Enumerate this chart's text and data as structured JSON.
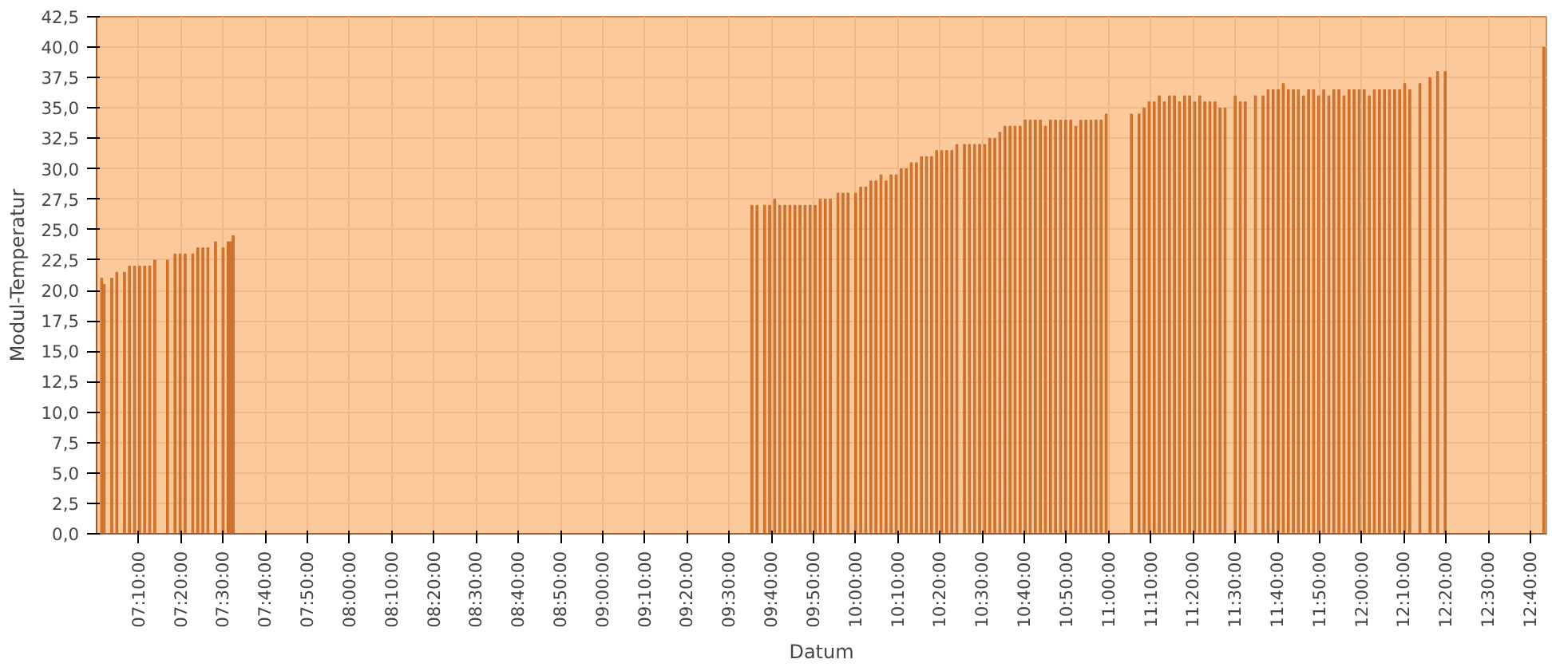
{
  "chart_data": {
    "type": "bar",
    "xlabel": "Datum",
    "ylabel": "Modul-Temperatur",
    "x": [
      7.02,
      7.03,
      7.06,
      7.08,
      7.11,
      7.13,
      7.15,
      7.17,
      7.19,
      7.21,
      7.23,
      7.28,
      7.31,
      7.33,
      7.35,
      7.38,
      7.4,
      7.42,
      7.44,
      7.47,
      7.5,
      7.52,
      7.53,
      7.54,
      9.59,
      9.61,
      9.64,
      9.66,
      9.68,
      9.7,
      9.72,
      9.74,
      9.76,
      9.78,
      9.8,
      9.82,
      9.84,
      9.86,
      9.88,
      9.9,
      9.93,
      9.95,
      9.97,
      10.0,
      10.02,
      10.04,
      10.06,
      10.08,
      10.1,
      10.12,
      10.14,
      10.16,
      10.18,
      10.2,
      10.22,
      10.24,
      10.26,
      10.28,
      10.3,
      10.32,
      10.34,
      10.36,
      10.38,
      10.4,
      10.43,
      10.45,
      10.47,
      10.49,
      10.51,
      10.53,
      10.55,
      10.57,
      10.59,
      10.61,
      10.63,
      10.65,
      10.67,
      10.69,
      10.71,
      10.73,
      10.75,
      10.77,
      10.79,
      10.81,
      10.83,
      10.85,
      10.87,
      10.89,
      10.91,
      10.93,
      10.95,
      10.97,
      10.99,
      11.09,
      11.12,
      11.14,
      11.16,
      11.18,
      11.2,
      11.22,
      11.24,
      11.26,
      11.28,
      11.3,
      11.32,
      11.34,
      11.36,
      11.38,
      11.4,
      11.42,
      11.44,
      11.46,
      11.5,
      11.52,
      11.54,
      11.58,
      11.61,
      11.63,
      11.65,
      11.67,
      11.69,
      11.71,
      11.73,
      11.75,
      11.77,
      11.79,
      11.81,
      11.83,
      11.85,
      11.87,
      11.89,
      11.91,
      11.93,
      11.95,
      11.97,
      11.99,
      12.01,
      12.03,
      12.05,
      12.07,
      12.09,
      12.11,
      12.13,
      12.15,
      12.17,
      12.19,
      12.23,
      12.27,
      12.3,
      12.33,
      12.72
    ],
    "values": [
      21.0,
      20.5,
      21.0,
      21.5,
      21.5,
      22.0,
      22.0,
      22.0,
      22.0,
      22.0,
      22.5,
      22.5,
      23.0,
      23.0,
      23.0,
      23.0,
      23.5,
      23.5,
      23.5,
      24.0,
      23.5,
      24.0,
      24.0,
      24.5,
      27.0,
      27.0,
      27.0,
      27.0,
      27.5,
      27.0,
      27.0,
      27.0,
      27.0,
      27.0,
      27.0,
      27.0,
      27.0,
      27.5,
      27.5,
      27.5,
      28.0,
      28.0,
      28.0,
      28.0,
      28.5,
      28.5,
      29.0,
      29.0,
      29.5,
      29.0,
      29.5,
      29.5,
      30.0,
      30.0,
      30.5,
      30.5,
      31.0,
      31.0,
      31.0,
      31.5,
      31.5,
      31.5,
      31.5,
      32.0,
      32.0,
      32.0,
      32.0,
      32.0,
      32.0,
      32.5,
      32.5,
      33.0,
      33.5,
      33.5,
      33.5,
      33.5,
      34.0,
      34.0,
      34.0,
      34.0,
      33.5,
      34.0,
      34.0,
      34.0,
      34.0,
      34.0,
      33.5,
      34.0,
      34.0,
      34.0,
      34.0,
      34.0,
      34.5,
      34.5,
      34.5,
      35.0,
      35.5,
      35.5,
      36.0,
      35.5,
      36.0,
      36.0,
      35.5,
      36.0,
      36.0,
      35.5,
      36.0,
      35.5,
      35.5,
      35.5,
      35.0,
      35.0,
      36.0,
      35.5,
      35.5,
      36.0,
      36.0,
      36.5,
      36.5,
      36.5,
      37.0,
      36.5,
      36.5,
      36.5,
      36.0,
      36.5,
      36.5,
      36.0,
      36.5,
      36.0,
      36.5,
      36.5,
      36.0,
      36.5,
      36.5,
      36.5,
      36.5,
      36.0,
      36.5,
      36.5,
      36.5,
      36.5,
      36.5,
      36.5,
      37.0,
      36.5,
      37.0,
      37.5,
      38.0,
      38.0,
      40.0
    ],
    "color": "#c96a24",
    "xlim": [
      7.0,
      12.73
    ],
    "xticks": [
      {
        "value": 7.1667,
        "label": "07:10:00"
      },
      {
        "value": 7.3333,
        "label": "07:20:00"
      },
      {
        "value": 7.5,
        "label": "07:30:00"
      },
      {
        "value": 7.6667,
        "label": "07:40:00"
      },
      {
        "value": 7.8333,
        "label": "07:50:00"
      },
      {
        "value": 8.0,
        "label": "08:00:00"
      },
      {
        "value": 8.1667,
        "label": "08:10:00"
      },
      {
        "value": 8.3333,
        "label": "08:20:00"
      },
      {
        "value": 8.5,
        "label": "08:30:00"
      },
      {
        "value": 8.6667,
        "label": "08:40:00"
      },
      {
        "value": 8.8333,
        "label": "08:50:00"
      },
      {
        "value": 9.0,
        "label": "09:00:00"
      },
      {
        "value": 9.1667,
        "label": "09:10:00"
      },
      {
        "value": 9.3333,
        "label": "09:20:00"
      },
      {
        "value": 9.5,
        "label": "09:30:00"
      },
      {
        "value": 9.6667,
        "label": "09:40:00"
      },
      {
        "value": 9.8333,
        "label": "09:50:00"
      },
      {
        "value": 10.0,
        "label": "10:00:00"
      },
      {
        "value": 10.1667,
        "label": "10:10:00"
      },
      {
        "value": 10.3333,
        "label": "10:20:00"
      },
      {
        "value": 10.5,
        "label": "10:30:00"
      },
      {
        "value": 10.6667,
        "label": "10:40:00"
      },
      {
        "value": 10.8333,
        "label": "10:50:00"
      },
      {
        "value": 11.0,
        "label": "11:00:00"
      },
      {
        "value": 11.1667,
        "label": "11:10:00"
      },
      {
        "value": 11.3333,
        "label": "11:20:00"
      },
      {
        "value": 11.5,
        "label": "11:30:00"
      },
      {
        "value": 11.6667,
        "label": "11:40:00"
      },
      {
        "value": 11.8333,
        "label": "11:50:00"
      },
      {
        "value": 12.0,
        "label": "12:00:00"
      },
      {
        "value": 12.1667,
        "label": "12:10:00"
      },
      {
        "value": 12.3333,
        "label": "12:20:00"
      },
      {
        "value": 12.5,
        "label": "12:30:00"
      },
      {
        "value": 12.6667,
        "label": "12:40:00"
      }
    ],
    "ylim": [
      0,
      42.5
    ],
    "yticks": [
      {
        "value": 0,
        "label": "0,0"
      },
      {
        "value": 2.5,
        "label": "2,5"
      },
      {
        "value": 5,
        "label": "5,0"
      },
      {
        "value": 7.5,
        "label": "7,5"
      },
      {
        "value": 10,
        "label": "10,0"
      },
      {
        "value": 12.5,
        "label": "12,5"
      },
      {
        "value": 15,
        "label": "15,0"
      },
      {
        "value": 17.5,
        "label": "17,5"
      },
      {
        "value": 20,
        "label": "20,0"
      },
      {
        "value": 22.5,
        "label": "22,5"
      },
      {
        "value": 25,
        "label": "25,0"
      },
      {
        "value": 27.5,
        "label": "27,5"
      },
      {
        "value": 30,
        "label": "30,0"
      },
      {
        "value": 32.5,
        "label": "32,5"
      },
      {
        "value": 35,
        "label": "35,0"
      },
      {
        "value": 37.5,
        "label": "37,5"
      },
      {
        "value": 40,
        "label": "40,0"
      },
      {
        "value": 42.5,
        "label": "42,5"
      }
    ],
    "grid": true
  }
}
